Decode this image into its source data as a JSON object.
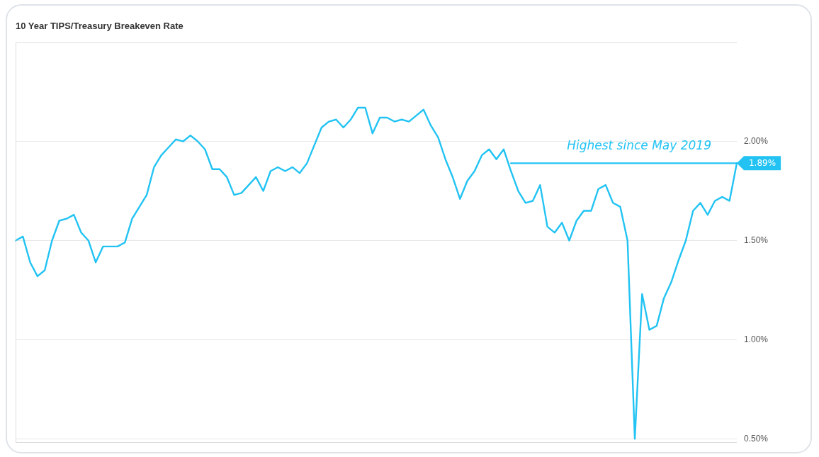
{
  "chart_data": {
    "type": "line",
    "title": "10 Year TIPS/Treasury Breakeven Rate",
    "categories": [
      null,
      null,
      null,
      null,
      null,
      null,
      null,
      null,
      null,
      null,
      null,
      null,
      null,
      null,
      null,
      null,
      null,
      null,
      null,
      null,
      null,
      null,
      null,
      null,
      null,
      null,
      null,
      null,
      null,
      null,
      null,
      null,
      null,
      null,
      null,
      null,
      null,
      null,
      null,
      null,
      null,
      null,
      null,
      null,
      null,
      null,
      null,
      null,
      null,
      null,
      null,
      null,
      null,
      null,
      null,
      null,
      null,
      null,
      null,
      null,
      null,
      null,
      null,
      null,
      null,
      null,
      null,
      null,
      null,
      null,
      null,
      null,
      null,
      null,
      null,
      null,
      null,
      null,
      null,
      null,
      null,
      null,
      null,
      null,
      null,
      null,
      null,
      null,
      null,
      null,
      null,
      null,
      null,
      null,
      null,
      null,
      null,
      null,
      null,
      null
    ],
    "series": [
      {
        "color": "#22c3f3",
        "values": [
          1.5,
          1.52,
          1.39,
          1.32,
          1.35,
          1.5,
          1.6,
          1.61,
          1.63,
          1.54,
          1.5,
          1.39,
          1.47,
          1.47,
          1.47,
          1.49,
          1.61,
          1.67,
          1.73,
          1.87,
          1.93,
          1.97,
          2.01,
          2.0,
          2.03,
          2.0,
          1.96,
          1.86,
          1.86,
          1.82,
          1.73,
          1.74,
          1.78,
          1.82,
          1.75,
          1.85,
          1.87,
          1.85,
          1.87,
          1.84,
          1.89,
          1.98,
          2.07,
          2.1,
          2.11,
          2.07,
          2.11,
          2.17,
          2.17,
          2.04,
          2.12,
          2.12,
          2.1,
          2.11,
          2.1,
          2.13,
          2.16,
          2.08,
          2.02,
          1.91,
          1.82,
          1.71,
          1.8,
          1.85,
          1.93,
          1.96,
          1.91,
          1.96,
          1.85,
          1.75,
          1.69,
          1.7,
          1.78,
          1.57,
          1.54,
          1.59,
          1.5,
          1.6,
          1.65,
          1.65,
          1.76,
          1.78,
          1.69,
          1.67,
          1.5,
          0.5,
          1.23,
          1.05,
          1.07,
          1.21,
          1.29,
          1.4,
          1.5,
          1.65,
          1.69,
          1.63,
          1.7,
          1.72,
          1.7,
          1.89
        ],
        "value_labels": [
          null,
          null,
          null,
          null,
          null,
          null,
          null,
          null,
          null,
          null,
          null,
          null,
          null,
          null,
          null,
          null,
          null,
          null,
          null,
          null,
          null,
          null,
          null,
          null,
          null,
          null,
          null,
          null,
          null,
          null,
          null,
          null,
          null,
          null,
          null,
          null,
          null,
          null,
          null,
          null,
          null,
          null,
          null,
          null,
          null,
          null,
          null,
          null,
          null,
          null,
          null,
          null,
          null,
          null,
          null,
          null,
          null,
          null,
          null,
          null,
          null,
          null,
          null,
          null,
          null,
          null,
          null,
          null,
          null,
          null,
          null,
          null,
          null,
          null,
          null,
          null,
          null,
          null,
          null,
          null,
          null,
          null,
          null,
          null,
          null,
          null,
          null,
          null,
          null,
          null,
          null,
          null,
          null,
          null,
          null,
          null,
          null,
          null,
          null,
          "1.89%"
        ]
      },
      {
        "color": "#22c3f3",
        "values": [
          null,
          null,
          null,
          null,
          null,
          null,
          null,
          null,
          null,
          null,
          null,
          null,
          null,
          null,
          null,
          null,
          null,
          null,
          null,
          null,
          null,
          null,
          null,
          null,
          null,
          null,
          null,
          null,
          null,
          null,
          null,
          null,
          null,
          null,
          null,
          null,
          null,
          null,
          null,
          null,
          null,
          null,
          null,
          null,
          null,
          null,
          null,
          null,
          null,
          null,
          null,
          null,
          null,
          null,
          null,
          null,
          null,
          null,
          null,
          null,
          null,
          null,
          null,
          null,
          null,
          null,
          null,
          null,
          1.89,
          1.89,
          1.89,
          1.89,
          1.89,
          1.89,
          1.89,
          1.89,
          1.89,
          1.89,
          1.89,
          1.89,
          1.89,
          1.89,
          1.89,
          1.89,
          1.89,
          1.89,
          1.89,
          1.89,
          1.89,
          1.89,
          1.89,
          1.89,
          1.89,
          1.89,
          1.89,
          1.89,
          1.89,
          1.89,
          1.89,
          1.89
        ]
      }
    ],
    "annotations": [
      {
        "text": "Highest since May 2019",
        "y": 1.89
      }
    ],
    "ylim": [
      0.48,
      2.5
    ],
    "yticks": [
      {
        "value": 0.5,
        "label": "0.50%"
      },
      {
        "value": 1,
        "label": "1.00%"
      },
      {
        "value": 1.5,
        "label": "1.50%"
      },
      {
        "value": 2,
        "label": "2.00%"
      }
    ],
    "grid": "y",
    "tick_labels": "y",
    "marker": "none",
    "line_style": "solid"
  }
}
